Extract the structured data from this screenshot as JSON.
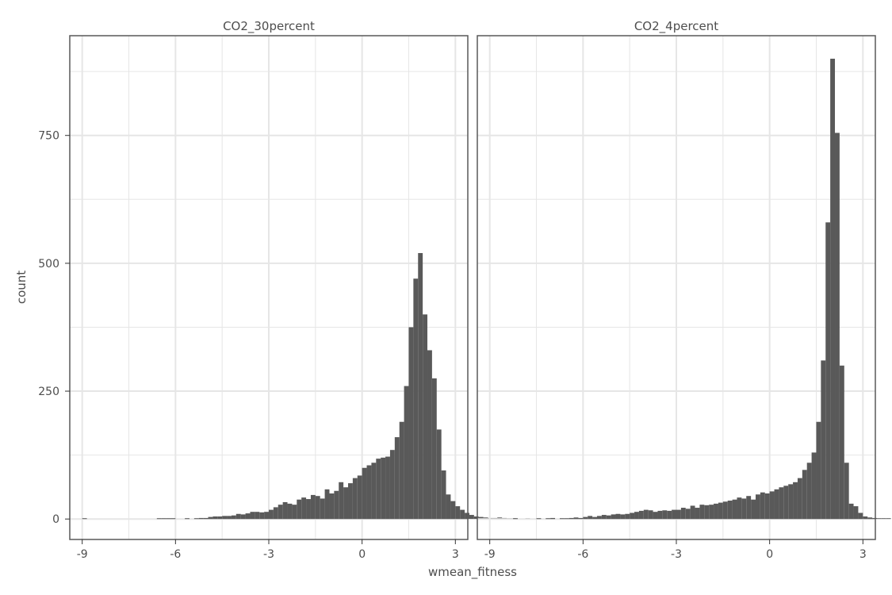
{
  "chart_data": {
    "type": "bar",
    "subtype": "histogram (faceted)",
    "xlabel": "wmean_fitness",
    "ylabel": "count",
    "xlim": [
      -9.4,
      3.4
    ],
    "ylim": [
      -40,
      945
    ],
    "xticks": [
      -9,
      -6,
      -3,
      0,
      3
    ],
    "yticks": [
      0,
      250,
      500,
      750
    ],
    "grid": true,
    "legend": "none",
    "colors": {
      "bar": "#595959",
      "grid": "#e6e6e6",
      "panel_border": "#595959",
      "text": "#4d4d4d"
    },
    "bin_start": -9.0,
    "bin_width": 0.15,
    "facets": [
      {
        "label": "CO2_30percent",
        "counts": [
          1,
          0,
          0,
          0,
          0,
          0,
          0,
          0,
          0,
          0,
          0,
          0,
          0,
          0,
          0,
          0,
          1,
          1,
          1,
          1,
          0,
          0,
          1,
          0,
          1,
          2,
          2,
          4,
          5,
          5,
          6,
          6,
          7,
          10,
          9,
          11,
          14,
          14,
          13,
          14,
          18,
          23,
          28,
          33,
          30,
          28,
          38,
          42,
          39,
          47,
          45,
          40,
          58,
          50,
          55,
          72,
          62,
          70,
          80,
          85,
          100,
          105,
          110,
          118,
          120,
          122,
          135,
          160,
          190,
          260,
          375,
          470,
          520,
          400,
          330,
          275,
          175,
          95,
          48,
          35,
          25,
          18,
          12,
          8,
          5,
          4,
          3,
          2,
          2,
          3,
          2,
          1,
          1,
          0,
          0,
          1
        ]
      },
      {
        "label": "CO2_4percent",
        "counts": [
          0,
          0,
          0,
          0,
          0,
          1,
          0,
          0,
          0,
          0,
          1,
          0,
          1,
          2,
          0,
          1,
          1,
          2,
          3,
          2,
          4,
          6,
          4,
          6,
          8,
          7,
          9,
          10,
          9,
          10,
          12,
          14,
          16,
          18,
          17,
          14,
          16,
          17,
          16,
          18,
          18,
          22,
          20,
          26,
          22,
          28,
          27,
          28,
          30,
          32,
          34,
          36,
          38,
          42,
          40,
          45,
          38,
          48,
          52,
          50,
          54,
          58,
          62,
          65,
          68,
          72,
          80,
          96,
          110,
          130,
          190,
          310,
          580,
          900,
          755,
          300,
          110,
          30,
          25,
          12,
          5,
          3,
          2,
          1,
          1,
          1,
          0,
          1,
          0,
          0,
          0,
          0,
          0,
          1,
          0,
          0,
          0
        ]
      }
    ]
  }
}
